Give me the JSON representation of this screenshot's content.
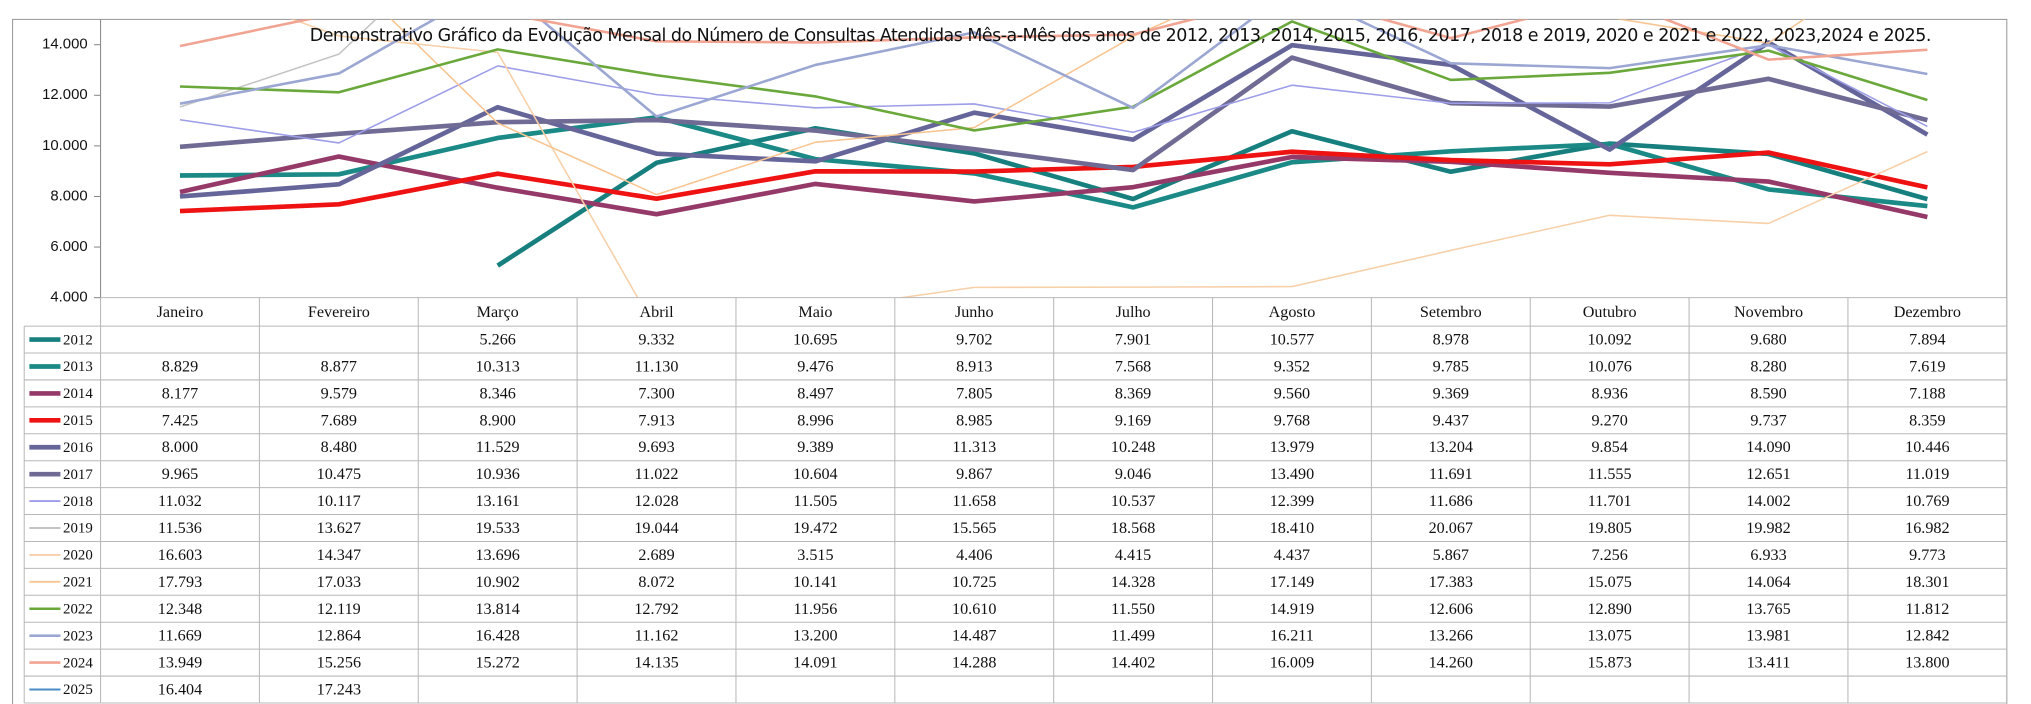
{
  "chart_data": {
    "type": "line",
    "title": "Demonstrativo Gráfico da Evolução Mensal do Número de Consultas Atendidas Mês-a-Mês dos anos de  2012, 2013, 2014, 2015, 2016, 2017, 2018 e 2019, 2020 e 2021 e 2022, 2023,2024 e 2025.",
    "categories": [
      "Janeiro",
      "Fevereiro",
      "Março",
      "Abril",
      "Maio",
      "Junho",
      "Julho",
      "Agosto",
      "Setembro",
      "Outubro",
      "Novembro",
      "Dezembro"
    ],
    "ylim": [
      4000,
      15000
    ],
    "yticks": [
      {
        "value": 4000,
        "label": "4.000"
      },
      {
        "value": 6000,
        "label": "6.000"
      },
      {
        "value": 8000,
        "label": "8.000"
      },
      {
        "value": 10000,
        "label": "10.000"
      },
      {
        "value": 12000,
        "label": "12.000"
      },
      {
        "value": 14000,
        "label": "14.000"
      }
    ],
    "grid": false,
    "series": [
      {
        "name": "2012",
        "color": "#17807e",
        "values": [
          null,
          null,
          5266,
          9332,
          10695,
          9702,
          7901,
          10577,
          8978,
          10092,
          9680,
          7894
        ],
        "value_labels": [
          null,
          null,
          "5.266",
          "9.332",
          "10.695",
          "9.702",
          "7.901",
          "10.577",
          "8.978",
          "10.092",
          "9.680",
          "7.894"
        ]
      },
      {
        "name": "2013",
        "color": "#1b8a86",
        "values": [
          8829,
          8877,
          10313,
          11130,
          9476,
          8913,
          7568,
          9352,
          9785,
          10076,
          8280,
          7619
        ],
        "value_labels": [
          "8.829",
          "8.877",
          "10.313",
          "11.130",
          "9.476",
          "8.913",
          "7.568",
          "9.352",
          "9.785",
          "10.076",
          "8.280",
          "7.619"
        ]
      },
      {
        "name": "2014",
        "color": "#953a68",
        "values": [
          8177,
          9579,
          8346,
          7300,
          8497,
          7805,
          8369,
          9560,
          9369,
          8936,
          8590,
          7188
        ],
        "value_labels": [
          "8.177",
          "9.579",
          "8.346",
          "7.300",
          "8.497",
          "7.805",
          "8.369",
          "9.560",
          "9.369",
          "8.936",
          "8.590",
          "7.188"
        ]
      },
      {
        "name": "2015",
        "color": "#ee1212",
        "values": [
          7425,
          7689,
          8900,
          7913,
          8996,
          8985,
          9169,
          9768,
          9437,
          9270,
          9737,
          8359
        ],
        "value_labels": [
          "7.425",
          "7.689",
          "8.900",
          "7.913",
          "8.996",
          "8.985",
          "9.169",
          "9.768",
          "9.437",
          "9.270",
          "9.737",
          "8.359"
        ]
      },
      {
        "name": "2016",
        "color": "#65659a",
        "values": [
          8000,
          8480,
          11529,
          9693,
          9389,
          11313,
          10248,
          13979,
          13204,
          9854,
          14090,
          10446
        ],
        "value_labels": [
          "8.000",
          "8.480",
          "11.529",
          "9.693",
          "9.389",
          "11.313",
          "10.248",
          "13.979",
          "13.204",
          "9.854",
          "14.090",
          "10.446"
        ]
      },
      {
        "name": "2017",
        "color": "#6f6b94",
        "values": [
          9965,
          10475,
          10936,
          11022,
          10604,
          9867,
          9046,
          13490,
          11691,
          11555,
          12651,
          11019
        ],
        "value_labels": [
          "9.965",
          "10.475",
          "10.936",
          "11.022",
          "10.604",
          "9.867",
          "9.046",
          "13.490",
          "11.691",
          "11.555",
          "12.651",
          "11.019"
        ]
      },
      {
        "name": "2018",
        "color": "#9d9de8",
        "values": [
          11032,
          10117,
          13161,
          12028,
          11505,
          11658,
          10537,
          12399,
          11686,
          11701,
          14002,
          10769
        ],
        "value_labels": [
          "11.032",
          "10.117",
          "13.161",
          "12.028",
          "11.505",
          "11.658",
          "10.537",
          "12.399",
          "11.686",
          "11.701",
          "14.002",
          "10.769"
        ]
      },
      {
        "name": "2019",
        "color": "#c4c4c4",
        "values": [
          11536,
          13627,
          19533,
          19044,
          19472,
          15565,
          18568,
          18410,
          20067,
          19805,
          19982,
          16982
        ],
        "value_labels": [
          "11.536",
          "13.627",
          "19.533",
          "19.044",
          "19.472",
          "15.565",
          "18.568",
          "18.410",
          "20.067",
          "19.805",
          "19.982",
          "16.982"
        ]
      },
      {
        "name": "2020",
        "color": "#f7cfa8",
        "values": [
          16603,
          14347,
          13696,
          2689,
          3515,
          4406,
          4415,
          4437,
          5867,
          7256,
          6933,
          9773
        ],
        "value_labels": [
          "16.603",
          "14.347",
          "13.696",
          "2.689",
          "3.515",
          "4.406",
          "4.415",
          "4.437",
          "5.867",
          "7.256",
          "6.933",
          "9.773"
        ]
      },
      {
        "name": "2021",
        "color": "#f8c592",
        "values": [
          17793,
          17033,
          10902,
          8072,
          10141,
          10725,
          14328,
          17149,
          17383,
          15075,
          14064,
          18301
        ],
        "value_labels": [
          "17.793",
          "17.033",
          "10.902",
          "8.072",
          "10.141",
          "10.725",
          "14.328",
          "17.149",
          "17.383",
          "15.075",
          "14.064",
          "18.301"
        ]
      },
      {
        "name": "2022",
        "color": "#6aa83c",
        "values": [
          12348,
          12119,
          13814,
          12792,
          11956,
          10610,
          11550,
          14919,
          12606,
          12890,
          13765,
          11812
        ],
        "value_labels": [
          "12.348",
          "12.119",
          "13.814",
          "12.792",
          "11.956",
          "10.610",
          "11.550",
          "14.919",
          "12.606",
          "12.890",
          "13.765",
          "11.812"
        ]
      },
      {
        "name": "2023",
        "color": "#9ba7d2",
        "values": [
          11669,
          12864,
          16428,
          11162,
          13200,
          14487,
          11499,
          16211,
          13266,
          13075,
          13981,
          12842
        ],
        "value_labels": [
          "11.669",
          "12.864",
          "16.428",
          "11.162",
          "13.200",
          "14.487",
          "11.499",
          "16.211",
          "13.266",
          "13.075",
          "13.981",
          "12.842"
        ]
      },
      {
        "name": "2024",
        "color": "#f2a493",
        "values": [
          13949,
          15256,
          15272,
          14135,
          14091,
          14288,
          14402,
          16009,
          14260,
          15873,
          13411,
          13800
        ],
        "value_labels": [
          "13.949",
          "15.256",
          "15.272",
          "14.135",
          "14.091",
          "14.288",
          "14.402",
          "16.009",
          "14.260",
          "15.873",
          "13.411",
          "13.800"
        ]
      },
      {
        "name": "2025",
        "color": "#4a8cc6",
        "values": [
          16404,
          17243,
          null,
          null,
          null,
          null,
          null,
          null,
          null,
          null,
          null,
          null
        ],
        "value_labels": [
          "16.404",
          "17.243",
          null,
          null,
          null,
          null,
          null,
          null,
          null,
          null,
          null,
          null
        ]
      }
    ]
  }
}
